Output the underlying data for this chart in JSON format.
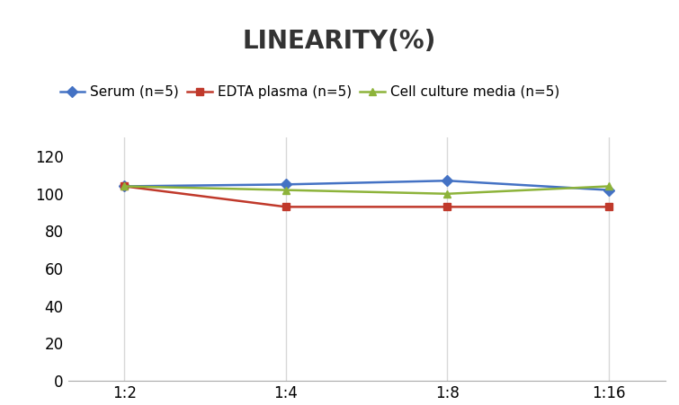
{
  "title": "LINEARITY(%)",
  "x_labels": [
    "1:2",
    "1:4",
    "1:8",
    "1:16"
  ],
  "x_positions": [
    0,
    1,
    2,
    3
  ],
  "series": [
    {
      "label": "Serum (n=5)",
      "values": [
        104,
        105,
        107,
        102
      ],
      "color": "#4472C4",
      "marker": "D",
      "markersize": 6,
      "linewidth": 1.8
    },
    {
      "label": "EDTA plasma (n=5)",
      "values": [
        104,
        93,
        93,
        93
      ],
      "color": "#C0392B",
      "marker": "s",
      "markersize": 6,
      "linewidth": 1.8
    },
    {
      "label": "Cell culture media (n=5)",
      "values": [
        104,
        102,
        100,
        104
      ],
      "color": "#8DB33A",
      "marker": "^",
      "markersize": 6,
      "linewidth": 1.8
    }
  ],
  "ylim": [
    0,
    130
  ],
  "yticks": [
    0,
    20,
    40,
    60,
    80,
    100,
    120
  ],
  "background_color": "#ffffff",
  "title_fontsize": 20,
  "title_fontweight": "bold",
  "legend_fontsize": 11,
  "tick_fontsize": 12,
  "grid_color": "#d8d8d8",
  "spine_color": "#aaaaaa"
}
